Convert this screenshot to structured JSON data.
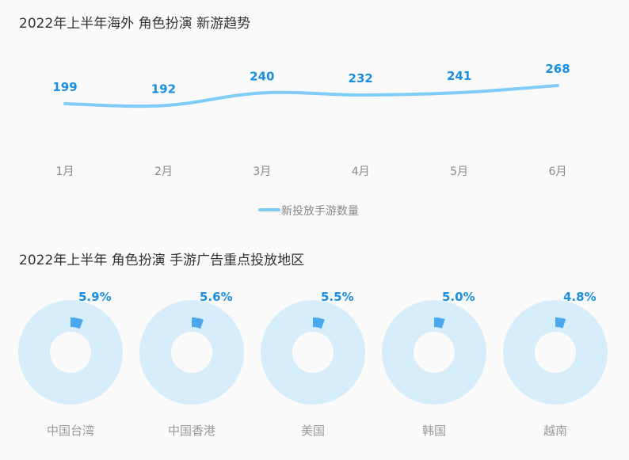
{
  "colors": {
    "line": "#7fcdf7",
    "value_label": "#1a8fe0",
    "axis_label": "#888888",
    "legend_text": "#888888",
    "donut_ring": "#d6edfc",
    "donut_slice": "#4aa8ee",
    "pct_label": "#1a8fe0",
    "region_label": "#999999"
  },
  "title_trend": "2022年上半年海外 角色扮演 新游趋势",
  "title_regions": "2022年上半年 角色扮演 手游广告重点投放地区",
  "chart_data": [
    {
      "type": "line",
      "title": "2022年上半年海外 角色扮演 新游趋势",
      "categories": [
        "1月",
        "2月",
        "3月",
        "4月",
        "5月",
        "6月"
      ],
      "series": [
        {
          "name": "新投放手游数量",
          "values": [
            199,
            192,
            240,
            232,
            241,
            268
          ]
        }
      ],
      "ylim": [
        0,
        300
      ],
      "grid": false,
      "legend": "bottom-center"
    },
    {
      "type": "pie",
      "title": "2022年上半年 角色扮演 手游广告重点投放地区",
      "categories": [
        "中国台湾",
        "中国香港",
        "美国",
        "韩国",
        "越南"
      ],
      "values": [
        5.9,
        5.6,
        5.5,
        5.0,
        4.8
      ],
      "labels": [
        "5.9%",
        "5.6%",
        "5.5%",
        "5.0%",
        "4.8%"
      ]
    }
  ]
}
